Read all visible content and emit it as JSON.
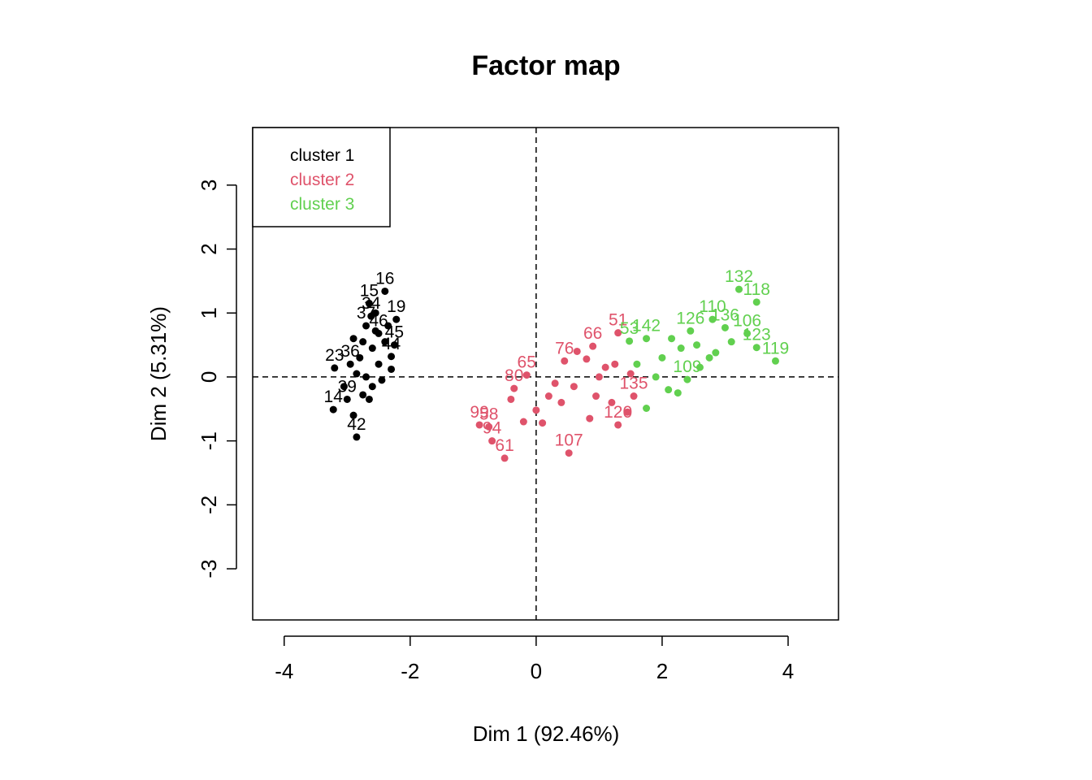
{
  "colors": {
    "cluster1": "#000000",
    "cluster2": "#DF536B",
    "cluster3": "#61D04F"
  },
  "chart_data": {
    "type": "scatter",
    "title": "Factor map",
    "xlabel": "Dim 1 (92.46%)",
    "ylabel": "Dim 2 (5.31%)",
    "xlim": [
      -4.5,
      4.8
    ],
    "ylim": [
      -3.8,
      3.9
    ],
    "xticks": [
      -4,
      -2,
      0,
      2,
      4
    ],
    "yticks": [
      -3,
      -2,
      -1,
      0,
      1,
      2,
      3
    ],
    "grid": false,
    "reference_lines": {
      "x": 0,
      "y": 0,
      "style": "dashed"
    },
    "legend": {
      "position": "top-left",
      "entries": [
        "cluster 1",
        "cluster 2",
        "cluster 3"
      ]
    },
    "series": [
      {
        "name": "cluster 1",
        "points": [
          {
            "label": "16",
            "x": -2.4,
            "y": 1.34
          },
          {
            "label": "15",
            "x": -2.65,
            "y": 1.15
          },
          {
            "label": "34",
            "x": -2.62,
            "y": 0.95
          },
          {
            "label": "19",
            "x": -2.22,
            "y": 0.9
          },
          {
            "label": "37",
            "x": -2.7,
            "y": 0.8
          },
          {
            "label": "46",
            "x": -2.5,
            "y": 0.68
          },
          {
            "label": "45",
            "x": -2.25,
            "y": 0.5
          },
          {
            "label": "23",
            "x": -3.2,
            "y": 0.14
          },
          {
            "label": "44",
            "x": -2.3,
            "y": 0.32
          },
          {
            "label": "36",
            "x": -2.95,
            "y": 0.2
          },
          {
            "label": "14",
            "x": -3.22,
            "y": -0.51
          },
          {
            "label": "39",
            "x": -3.0,
            "y": -0.35
          },
          {
            "label": "42",
            "x": -2.85,
            "y": -0.94
          },
          {
            "label": "",
            "x": -2.9,
            "y": 0.6
          },
          {
            "label": "",
            "x": -2.55,
            "y": 1.0
          },
          {
            "label": "",
            "x": -2.35,
            "y": 0.8
          },
          {
            "label": "",
            "x": -2.8,
            "y": 0.3
          },
          {
            "label": "",
            "x": -2.7,
            "y": 0.0
          },
          {
            "label": "",
            "x": -2.75,
            "y": -0.28
          },
          {
            "label": "",
            "x": -2.6,
            "y": 0.45
          },
          {
            "label": "",
            "x": -2.5,
            "y": 0.2
          },
          {
            "label": "",
            "x": -2.45,
            "y": -0.05
          },
          {
            "label": "",
            "x": -2.9,
            "y": -0.6
          },
          {
            "label": "",
            "x": -3.05,
            "y": -0.15
          },
          {
            "label": "",
            "x": -2.65,
            "y": -0.35
          },
          {
            "label": "",
            "x": -2.4,
            "y": 0.55
          },
          {
            "label": "",
            "x": -2.55,
            "y": 0.72
          },
          {
            "label": "",
            "x": -2.85,
            "y": 0.05
          },
          {
            "label": "",
            "x": -2.3,
            "y": 0.12
          },
          {
            "label": "",
            "x": -2.75,
            "y": 0.55
          },
          {
            "label": "",
            "x": -2.6,
            "y": -0.15
          }
        ]
      },
      {
        "name": "cluster 2",
        "points": [
          {
            "label": "51",
            "x": 1.3,
            "y": 0.69
          },
          {
            "label": "66",
            "x": 0.9,
            "y": 0.48
          },
          {
            "label": "76",
            "x": 0.45,
            "y": 0.25
          },
          {
            "label": "65",
            "x": -0.15,
            "y": 0.03
          },
          {
            "label": "80",
            "x": -0.35,
            "y": -0.18
          },
          {
            "label": "99",
            "x": -0.9,
            "y": -0.75
          },
          {
            "label": "58",
            "x": -0.75,
            "y": -0.78
          },
          {
            "label": "94",
            "x": -0.7,
            "y": -1.0
          },
          {
            "label": "61",
            "x": -0.5,
            "y": -1.27
          },
          {
            "label": "107",
            "x": 0.52,
            "y": -1.19
          },
          {
            "label": "120",
            "x": 1.3,
            "y": -0.75
          },
          {
            "label": "135",
            "x": 1.55,
            "y": -0.3
          },
          {
            "label": "",
            "x": 0.8,
            "y": 0.28
          },
          {
            "label": "",
            "x": 0.2,
            "y": -0.3
          },
          {
            "label": "",
            "x": 0.0,
            "y": -0.52
          },
          {
            "label": "",
            "x": 0.3,
            "y": -0.1
          },
          {
            "label": "",
            "x": 1.0,
            "y": 0.0
          },
          {
            "label": "",
            "x": 1.2,
            "y": -0.4
          },
          {
            "label": "",
            "x": 0.6,
            "y": -0.15
          },
          {
            "label": "",
            "x": -0.2,
            "y": -0.7
          },
          {
            "label": "",
            "x": 0.85,
            "y": -0.65
          },
          {
            "label": "",
            "x": 1.45,
            "y": -0.55
          },
          {
            "label": "",
            "x": 1.1,
            "y": 0.15
          },
          {
            "label": "",
            "x": 0.65,
            "y": 0.4
          },
          {
            "label": "",
            "x": 0.4,
            "y": -0.4
          },
          {
            "label": "",
            "x": 1.25,
            "y": 0.2
          },
          {
            "label": "",
            "x": 0.1,
            "y": -0.72
          },
          {
            "label": "",
            "x": -0.4,
            "y": -0.35
          },
          {
            "label": "",
            "x": 1.5,
            "y": 0.05
          },
          {
            "label": "",
            "x": 0.95,
            "y": -0.3
          }
        ]
      },
      {
        "name": "cluster 3",
        "points": [
          {
            "label": "132",
            "x": 3.22,
            "y": 1.37
          },
          {
            "label": "118",
            "x": 3.5,
            "y": 1.17
          },
          {
            "label": "110",
            "x": 2.8,
            "y": 0.9
          },
          {
            "label": "136",
            "x": 3.0,
            "y": 0.77
          },
          {
            "label": "126",
            "x": 2.45,
            "y": 0.72
          },
          {
            "label": "106",
            "x": 3.35,
            "y": 0.68
          },
          {
            "label": "123",
            "x": 3.5,
            "y": 0.46
          },
          {
            "label": "119",
            "x": 3.8,
            "y": 0.25
          },
          {
            "label": "53",
            "x": 1.48,
            "y": 0.56
          },
          {
            "label": "142",
            "x": 1.75,
            "y": 0.6
          },
          {
            "label": "109",
            "x": 2.4,
            "y": -0.04
          },
          {
            "label": "",
            "x": 2.0,
            "y": 0.3
          },
          {
            "label": "",
            "x": 2.3,
            "y": 0.45
          },
          {
            "label": "",
            "x": 2.6,
            "y": 0.15
          },
          {
            "label": "",
            "x": 1.75,
            "y": -0.49
          },
          {
            "label": "",
            "x": 2.1,
            "y": -0.2
          },
          {
            "label": "",
            "x": 2.25,
            "y": -0.25
          },
          {
            "label": "",
            "x": 1.9,
            "y": 0.0
          },
          {
            "label": "",
            "x": 2.85,
            "y": 0.38
          },
          {
            "label": "",
            "x": 2.55,
            "y": 0.5
          },
          {
            "label": "",
            "x": 2.15,
            "y": 0.6
          },
          {
            "label": "",
            "x": 1.6,
            "y": 0.2
          },
          {
            "label": "",
            "x": 2.75,
            "y": 0.3
          },
          {
            "label": "",
            "x": 3.1,
            "y": 0.55
          }
        ]
      }
    ]
  }
}
